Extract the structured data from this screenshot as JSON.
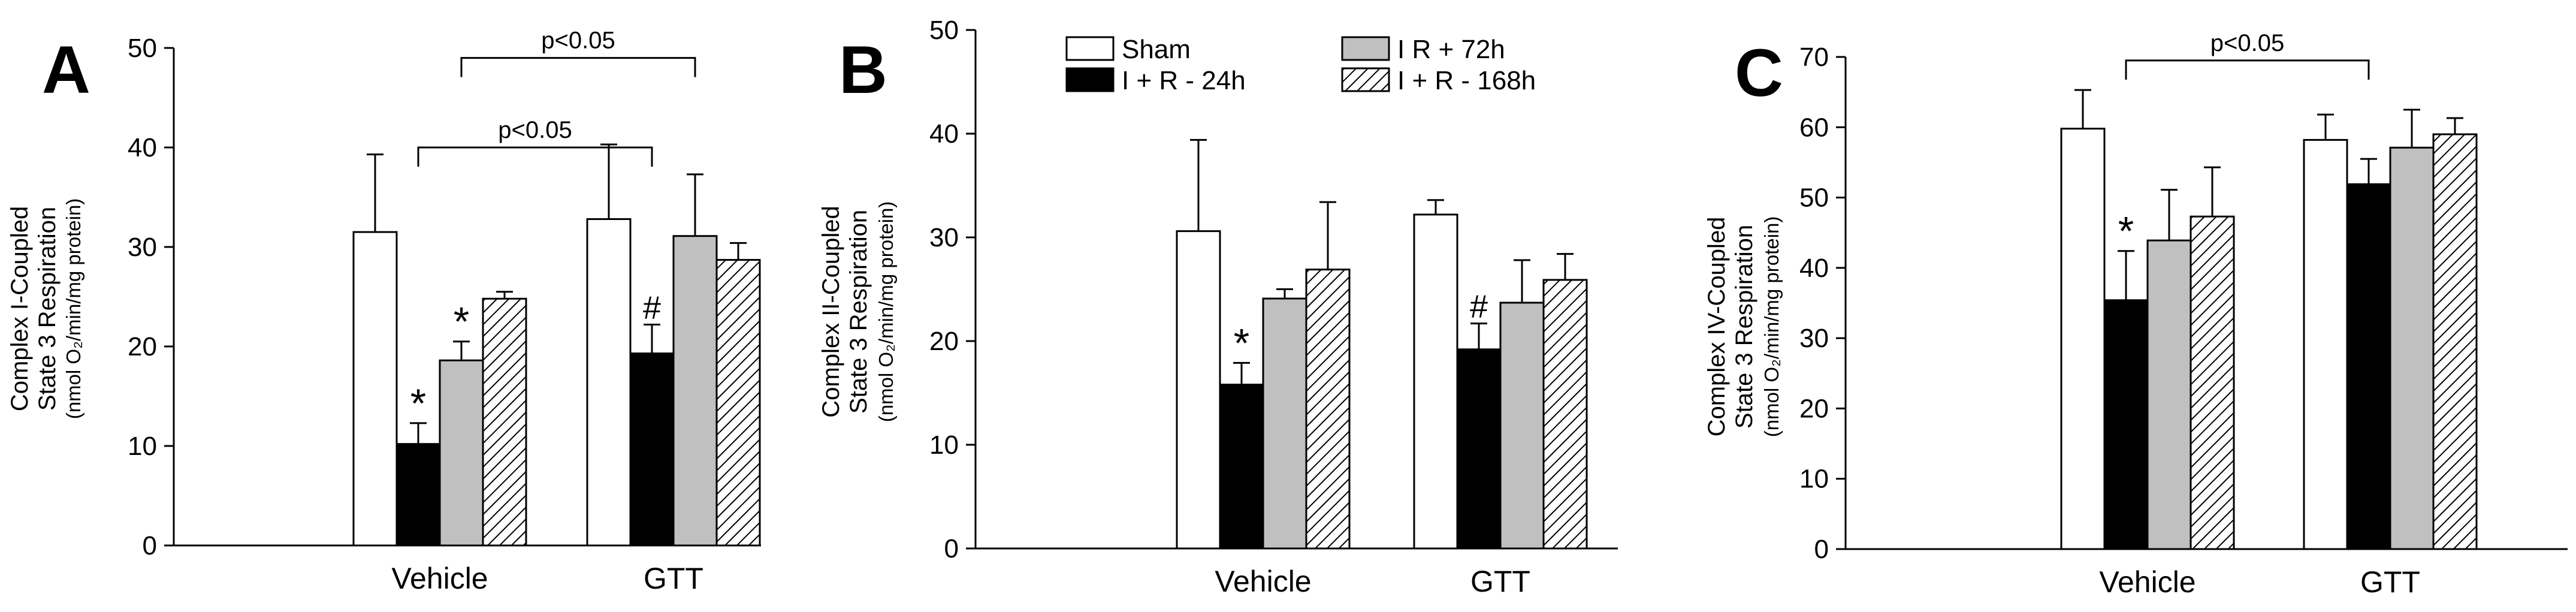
{
  "colors": {
    "axis": "#000000",
    "sham": "#ffffff",
    "i_r_24h": "#000000",
    "i_r_72h": "#c0c0c0",
    "i_r_168h_stripe": "#000000"
  },
  "legend": {
    "entries": [
      "Sham",
      "I + R - 24h",
      "I  R + 72h",
      "I + R - 168h"
    ]
  },
  "chart_data": [
    {
      "type": "bar",
      "panel_label": "A",
      "ylabel_lines": [
        "Complex I-Coupled",
        "State 3 Respiration"
      ],
      "ylabel_units": "(nmol O₂/min/mg protein)",
      "ylim": [
        0,
        50
      ],
      "yticks": [
        0,
        10,
        20,
        30,
        40,
        50
      ],
      "categories": [
        "Vehicle",
        "GTT"
      ],
      "series": [
        {
          "name": "Sham",
          "values": [
            31.5,
            32.8
          ],
          "errors": [
            7.8,
            7.5
          ]
        },
        {
          "name": "I + R - 24h",
          "values": [
            10.2,
            19.3
          ],
          "errors": [
            2.1,
            2.9
          ]
        },
        {
          "name": "I  R + 72h",
          "values": [
            18.6,
            31.1
          ],
          "errors": [
            1.9,
            6.2
          ]
        },
        {
          "name": "I + R - 168h",
          "values": [
            24.8,
            28.7
          ],
          "errors": [
            0.7,
            1.7
          ]
        }
      ],
      "marks": [
        {
          "category": 0,
          "series": 1,
          "symbol": "*"
        },
        {
          "category": 0,
          "series": 2,
          "symbol": "*"
        },
        {
          "category": 1,
          "series": 1,
          "symbol": "#"
        }
      ],
      "brackets": [
        {
          "from": [
            0,
            1
          ],
          "to": [
            1,
            1
          ],
          "y": 40,
          "label": "p<0.05"
        },
        {
          "from": [
            0,
            2
          ],
          "to": [
            1,
            2
          ],
          "y": 49,
          "label": "p<0.05"
        }
      ]
    },
    {
      "type": "bar",
      "panel_label": "B",
      "ylabel_lines": [
        "Complex II-Coupled",
        "State 3 Respiration"
      ],
      "ylabel_units": "(nmol O₂/min/mg protein)",
      "ylim": [
        0,
        50
      ],
      "yticks": [
        0,
        10,
        20,
        30,
        40,
        50
      ],
      "categories": [
        "Vehicle",
        "GTT"
      ],
      "series": [
        {
          "name": "Sham",
          "values": [
            30.6,
            32.2
          ],
          "errors": [
            8.8,
            1.4
          ]
        },
        {
          "name": "I + R - 24h",
          "values": [
            15.8,
            19.2
          ],
          "errors": [
            2.1,
            2.5
          ]
        },
        {
          "name": "I  R + 72h",
          "values": [
            24.1,
            23.7
          ],
          "errors": [
            0.9,
            4.1
          ]
        },
        {
          "name": "I + R - 168h",
          "values": [
            26.9,
            25.9
          ],
          "errors": [
            6.5,
            2.5
          ]
        }
      ],
      "marks": [
        {
          "category": 0,
          "series": 1,
          "symbol": "*"
        },
        {
          "category": 1,
          "series": 1,
          "symbol": "#"
        }
      ],
      "brackets": []
    },
    {
      "type": "bar",
      "panel_label": "C",
      "ylabel_lines": [
        "Complex IV-Coupled",
        "State 3 Respiration"
      ],
      "ylabel_units": "(nmol O₂/min/mg protein)",
      "ylim": [
        0,
        70
      ],
      "yticks": [
        0,
        10,
        20,
        30,
        40,
        50,
        60,
        70
      ],
      "categories": [
        "Vehicle",
        "GTT"
      ],
      "series": [
        {
          "name": "Sham",
          "values": [
            59.8,
            58.2
          ],
          "errors": [
            5.5,
            3.6
          ]
        },
        {
          "name": "I + R - 24h",
          "values": [
            35.4,
            51.9
          ],
          "errors": [
            7.0,
            3.6
          ]
        },
        {
          "name": "I  R + 72h",
          "values": [
            43.9,
            57.1
          ],
          "errors": [
            7.2,
            5.4
          ]
        },
        {
          "name": "I + R - 168h",
          "values": [
            47.3,
            59.0
          ],
          "errors": [
            7.0,
            2.3
          ]
        }
      ],
      "marks": [
        {
          "category": 0,
          "series": 1,
          "symbol": "*"
        }
      ],
      "brackets": [
        {
          "from": [
            0,
            1
          ],
          "to": [
            1,
            1
          ],
          "y": 69.5,
          "label": "p<0.05"
        }
      ]
    }
  ]
}
